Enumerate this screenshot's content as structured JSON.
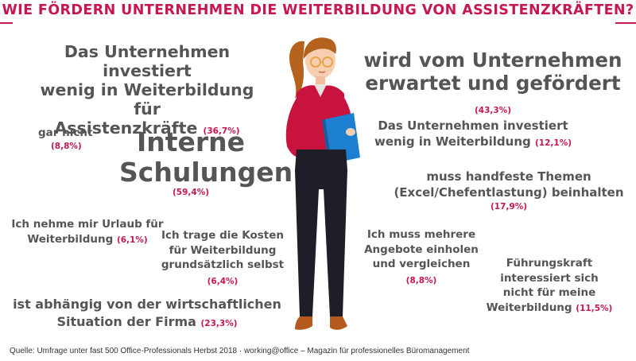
{
  "headline": "WIE FÖRDERN UNTERNEHMEN DIE WEITERBILDUNG VON ASSISTENZKRÄFTEN?",
  "statements": {
    "s1": {
      "lines": [
        "Das Unternehmen investiert",
        "wenig in Weiterbildung für",
        "Assistenzkräfte"
      ],
      "pct": "(36,7%)"
    },
    "s2": {
      "lines": [
        "wird vom Unternehmen",
        "erwartet und gefördert"
      ],
      "pct": "(43,3%)"
    },
    "s3": {
      "lines": [
        "gar nicht"
      ],
      "pct": "(8,8%)"
    },
    "s4": {
      "lines": [
        "Interne",
        "Schulungen"
      ],
      "pct": "(59,4%)"
    },
    "s5": {
      "lines": [
        "Das Unternehmen investiert",
        "wenig in Weiterbildung"
      ],
      "pct": "(12,1%)"
    },
    "s6": {
      "lines": [
        "muss handfeste Themen",
        "(Excel/Chefentlastung) beinhalten"
      ],
      "pct": "(17,9%)"
    },
    "s7": {
      "lines": [
        "Ich nehme mir Urlaub für",
        "Weiterbildung"
      ],
      "pct": "(6,1%)"
    },
    "s8": {
      "lines": [
        "Ich trage die Kosten",
        "für Weiterbildung",
        "grundsätzlich selbst"
      ],
      "pct": "(6,4%)"
    },
    "s9": {
      "lines": [
        "Ich muss mehrere",
        "Angebote einholen",
        "und vergleichen"
      ],
      "pct": "(8,8%)"
    },
    "s10": {
      "lines": [
        "Führungskraft",
        "interessiert sich",
        "nicht für meine",
        "Weiterbildung"
      ],
      "pct": "(11,5%)"
    },
    "s11": {
      "lines": [
        "ist abhängig von der wirtschaftlichen",
        "Situation der Firma"
      ],
      "pct": "(23,3%)"
    }
  },
  "footer": "Quelle: Umfrage unter fast 500 Office-Professionals Herbst 2018 · working@office – Magazin für professionelles Büromanagement",
  "colors": {
    "accent": "#c6174e",
    "text": "#555555",
    "blouse": "#c8133f",
    "trousers": "#1e1e28",
    "folder": "#1d7fcf",
    "hair": "#b5621f",
    "skin": "#f6cfb2"
  },
  "illustration": "woman-holding-blue-folder"
}
